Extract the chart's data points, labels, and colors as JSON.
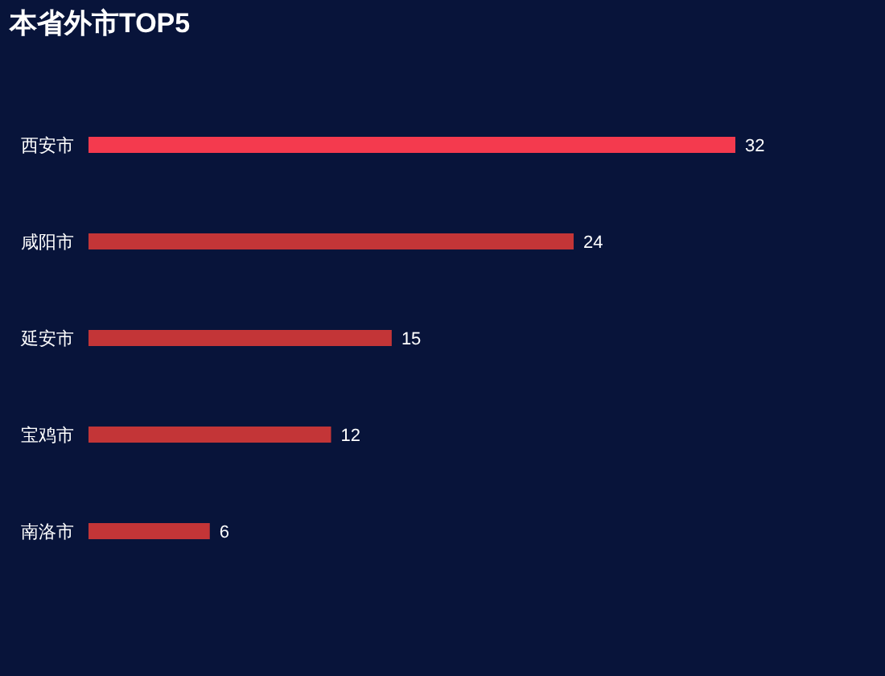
{
  "chart_data": {
    "type": "bar",
    "orientation": "horizontal",
    "title": "本省外市TOP5",
    "categories": [
      "西安市",
      "咸阳市",
      "延安市",
      "宝鸡市",
      "南洛市"
    ],
    "values": [
      32,
      24,
      15,
      12,
      6
    ],
    "colors": [
      "#f43a4e",
      "#c33537",
      "#c33537",
      "#c33537",
      "#c33537"
    ],
    "data_labels": true
  }
}
